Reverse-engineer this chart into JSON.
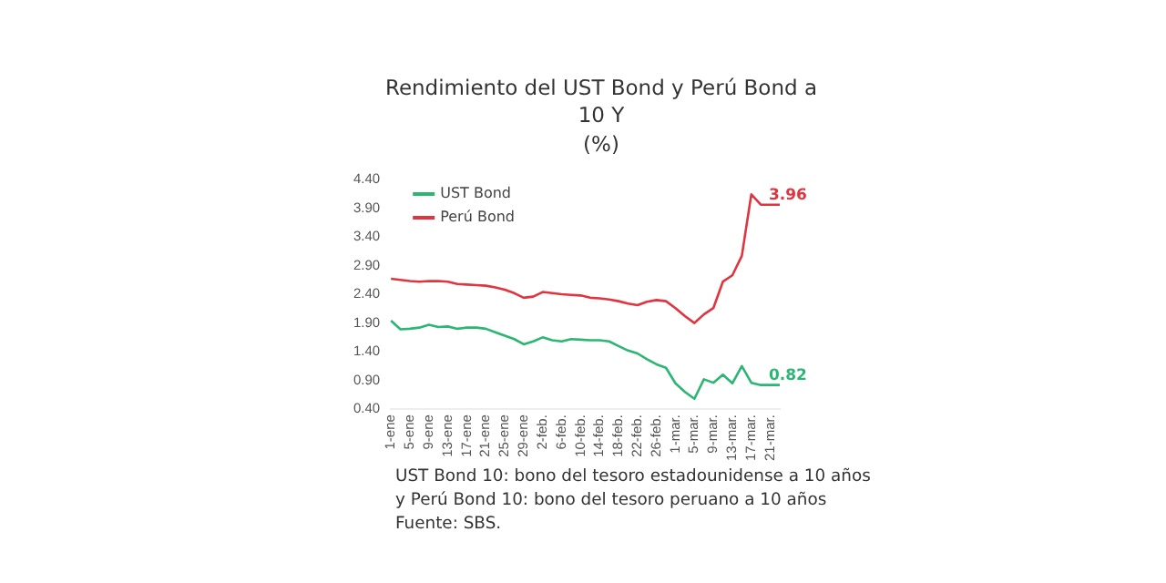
{
  "chart_data": {
    "type": "line",
    "title": "Rendimiento del UST Bond y Perú Bond a 10 Y",
    "subtitle": "(%)",
    "categories": [
      "1-ene",
      null,
      "5-ene",
      null,
      "9-ene",
      null,
      "13-ene",
      null,
      "17-ene",
      null,
      "21-ene",
      null,
      "25-ene",
      null,
      "29-ene",
      null,
      "2-feb.",
      null,
      "6-feb.",
      null,
      "10-feb.",
      null,
      "14-feb.",
      null,
      "18-feb.",
      null,
      "22-feb.",
      null,
      "26-feb.",
      null,
      "1-mar.",
      null,
      "5-mar.",
      null,
      "9-mar.",
      null,
      "13-mar.",
      null,
      "17-mar.",
      null,
      "21-mar.",
      null
    ],
    "series": [
      {
        "name": "UST Bond",
        "color": "#2bb673",
        "values": [
          1.94,
          1.79,
          1.8,
          1.82,
          1.87,
          1.83,
          1.84,
          1.8,
          1.82,
          1.82,
          1.8,
          1.74,
          1.68,
          1.62,
          1.53,
          1.58,
          1.65,
          1.6,
          1.58,
          1.62,
          1.61,
          1.6,
          1.6,
          1.58,
          1.5,
          1.42,
          1.37,
          1.27,
          1.18,
          1.12,
          0.85,
          0.7,
          0.58,
          0.92,
          0.86,
          1.0,
          0.85,
          1.15,
          0.86,
          0.82,
          0.82,
          0.82
        ],
        "value_labels": [
          null,
          null,
          null,
          null,
          null,
          null,
          null,
          null,
          null,
          null,
          null,
          null,
          null,
          null,
          null,
          null,
          null,
          null,
          null,
          null,
          null,
          null,
          null,
          null,
          null,
          null,
          null,
          null,
          null,
          null,
          null,
          null,
          null,
          null,
          null,
          null,
          null,
          null,
          null,
          null,
          null,
          "0.82"
        ]
      },
      {
        "name": "Perú Bond",
        "color": "#e0343f",
        "values": [
          2.67,
          2.65,
          2.63,
          2.62,
          2.63,
          2.63,
          2.62,
          2.58,
          2.57,
          2.56,
          2.55,
          2.52,
          2.48,
          2.42,
          2.34,
          2.36,
          2.44,
          2.42,
          2.4,
          2.39,
          2.38,
          2.34,
          2.33,
          2.31,
          2.28,
          2.24,
          2.21,
          2.27,
          2.3,
          2.28,
          2.16,
          2.02,
          1.9,
          2.05,
          2.16,
          2.62,
          2.73,
          3.07,
          4.14,
          3.96,
          3.96,
          3.96
        ],
        "value_labels": [
          null,
          null,
          null,
          null,
          null,
          null,
          null,
          null,
          null,
          null,
          null,
          null,
          null,
          null,
          null,
          null,
          null,
          null,
          null,
          null,
          null,
          null,
          null,
          null,
          null,
          null,
          null,
          null,
          null,
          null,
          null,
          null,
          null,
          null,
          null,
          null,
          null,
          null,
          null,
          null,
          null,
          "3.96"
        ]
      }
    ],
    "ylim": [
      0.4,
      4.4
    ],
    "yticks": [
      {
        "value": 0.4,
        "label": "0.40"
      },
      {
        "value": 0.9,
        "label": "0.90"
      },
      {
        "value": 1.4,
        "label": "1.40"
      },
      {
        "value": 1.9,
        "label": "1.90"
      },
      {
        "value": 2.4,
        "label": "2.40"
      },
      {
        "value": 2.9,
        "label": "2.90"
      },
      {
        "value": 3.4,
        "label": "3.40"
      },
      {
        "value": 3.9,
        "label": "3.90"
      },
      {
        "value": 4.4,
        "label": "4.40"
      }
    ],
    "legend": "top left",
    "marker": "none",
    "annotations": [
      "UST Bond 10: bono del tesoro estadounidense a 10 años y Perú Bond 10: bono del tesoro peruano a 10 años",
      "Fuente: SBS."
    ]
  }
}
